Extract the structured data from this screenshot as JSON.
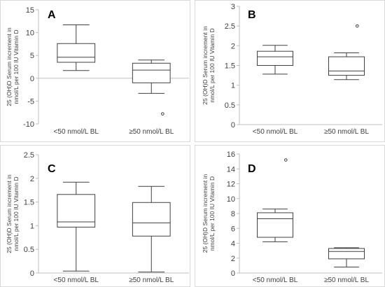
{
  "chart_data": [
    {
      "type": "box",
      "panel": "A",
      "ylabel_lines": [
        "25 (OH)D Serum increment in",
        "nmol/L per 100 IU Vitamin D"
      ],
      "ylim": [
        -10,
        15
      ],
      "yticks": [
        -10,
        -5,
        0,
        5,
        10,
        15
      ],
      "categories": [
        "<50 nmol/L BL",
        "≥50 nmol/L BL"
      ],
      "boxes": [
        {
          "min": 1.7,
          "q1": 3.5,
          "median": 4.6,
          "q3": 7.6,
          "max": 11.7,
          "outliers": []
        },
        {
          "min": -3.3,
          "q1": -1.0,
          "median": 1.8,
          "q3": 3.3,
          "max": 4.0,
          "outliers": [
            -7.8
          ]
        }
      ]
    },
    {
      "type": "box",
      "panel": "B",
      "ylabel_lines": [
        "25 (OH)D Serum increment in",
        "nmol/L per 100 IU Vitamin D"
      ],
      "ylim": [
        0,
        3
      ],
      "yticks": [
        0,
        0.5,
        1,
        1.5,
        2,
        2.5,
        3
      ],
      "categories": [
        "<50 nmol/L BL",
        "≥50 nmol/L BL"
      ],
      "boxes": [
        {
          "min": 1.28,
          "q1": 1.5,
          "median": 1.72,
          "q3": 1.86,
          "max": 2.01,
          "outliers": []
        },
        {
          "min": 1.14,
          "q1": 1.25,
          "median": 1.36,
          "q3": 1.72,
          "max": 1.82,
          "outliers": [
            2.5
          ]
        }
      ]
    },
    {
      "type": "box",
      "panel": "C",
      "ylabel_lines": [
        "25 (OH)D Serum increment in",
        "nmol/L per 100 IU Vitamin D"
      ],
      "ylim": [
        0,
        2.5
      ],
      "yticks": [
        0,
        0.5,
        1,
        1.5,
        2,
        2.5
      ],
      "categories": [
        "<50 nmol/L BL",
        "≥50 nmol/L BL"
      ],
      "boxes": [
        {
          "min": 0.04,
          "q1": 0.97,
          "median": 1.08,
          "q3": 1.66,
          "max": 1.92,
          "outliers": []
        },
        {
          "min": 0.02,
          "q1": 0.78,
          "median": 1.06,
          "q3": 1.49,
          "max": 1.83,
          "outliers": []
        }
      ]
    },
    {
      "type": "box",
      "panel": "D",
      "ylabel_lines": [
        "25 (OH)D Serum increment in",
        "nmol/L per 100 IU Vitamin D"
      ],
      "ylim": [
        0,
        16
      ],
      "yticks": [
        0,
        2,
        4,
        6,
        8,
        10,
        12,
        14,
        16
      ],
      "categories": [
        "<50 nmol/L BL",
        "≥50 nmol/L BL"
      ],
      "boxes": [
        {
          "min": 4.2,
          "q1": 4.8,
          "median": 7.3,
          "q3": 8.1,
          "max": 8.6,
          "outliers": [
            15.2
          ]
        },
        {
          "min": 0.8,
          "q1": 1.9,
          "median": 2.9,
          "q3": 3.3,
          "max": 3.4,
          "outliers": []
        }
      ]
    }
  ]
}
